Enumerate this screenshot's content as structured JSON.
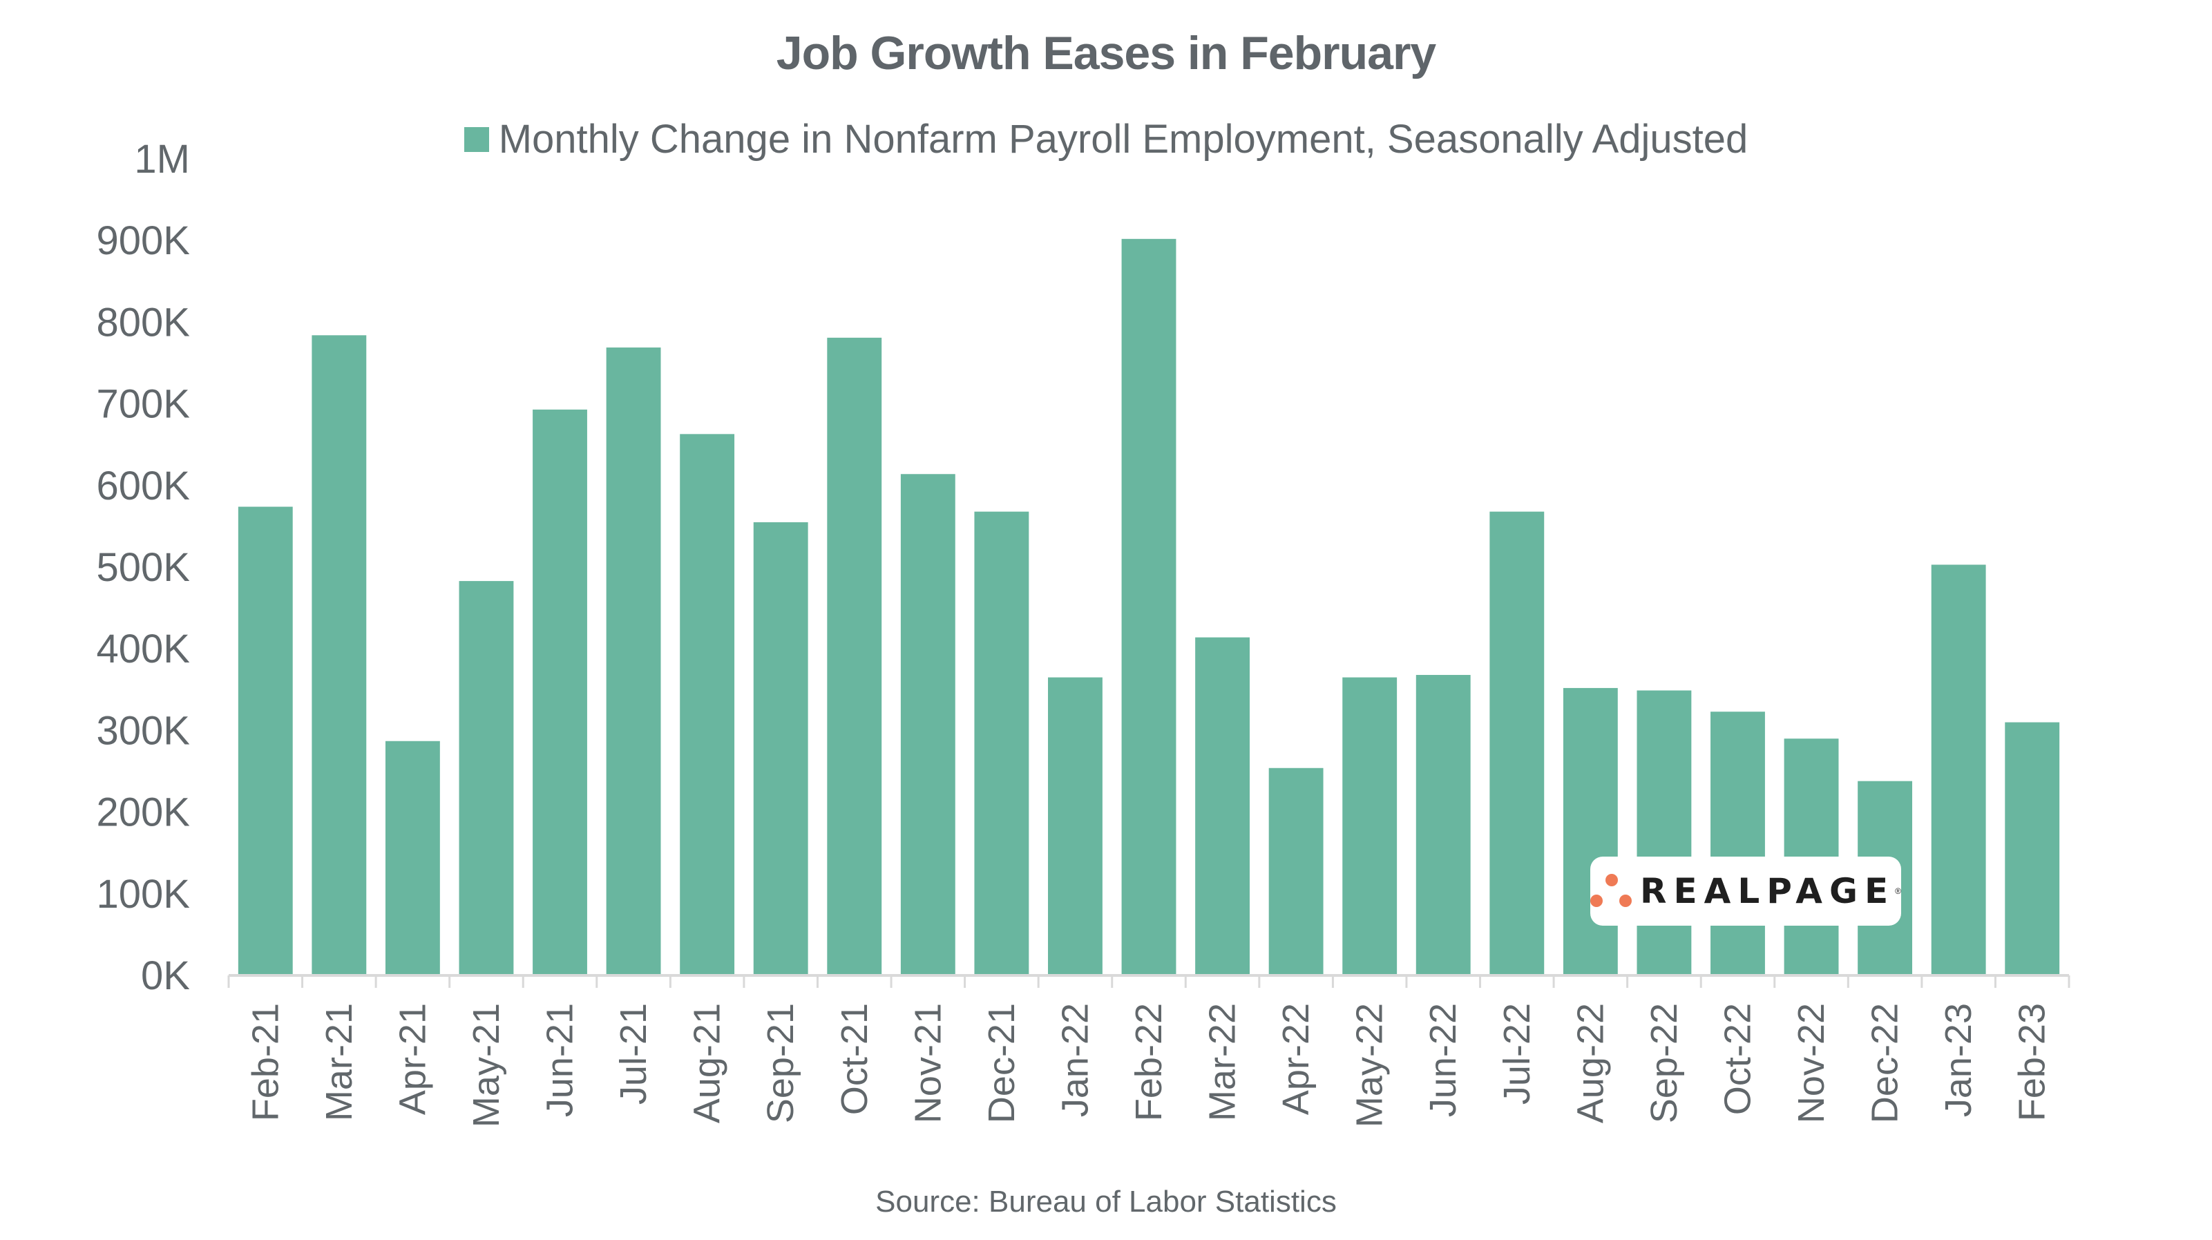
{
  "chart_data": {
    "type": "bar",
    "title": "Job Growth Eases in February",
    "legend": {
      "position": "top-center",
      "entries": [
        "Monthly Change in Nonfarm Payroll Employment, Seasonally Adjusted"
      ]
    },
    "xlabel": "",
    "ylabel": "",
    "ylim": [
      0,
      1000000
    ],
    "yticks": [
      0,
      100000,
      200000,
      300000,
      400000,
      500000,
      600000,
      700000,
      800000,
      900000,
      1000000
    ],
    "ytick_labels": [
      "0K",
      "100K",
      "200K",
      "300K",
      "400K",
      "500K",
      "600K",
      "700K",
      "800K",
      "900K",
      "1M"
    ],
    "grid": false,
    "categories": [
      "Feb-21",
      "Mar-21",
      "Apr-21",
      "May-21",
      "Jun-21",
      "Jul-21",
      "Aug-21",
      "Sep-21",
      "Oct-21",
      "Nov-21",
      "Dec-21",
      "Jan-22",
      "Feb-22",
      "Mar-22",
      "Apr-22",
      "May-22",
      "Jun-22",
      "Jul-22",
      "Aug-22",
      "Sep-22",
      "Oct-22",
      "Nov-22",
      "Dec-22",
      "Jan-23",
      "Feb-23"
    ],
    "series": [
      {
        "name": "Monthly Change in Nonfarm Payroll Employment, Seasonally Adjusted",
        "color": "#69b69f",
        "values": [
          574000,
          784000,
          287000,
          483000,
          693000,
          769000,
          663000,
          555000,
          781000,
          614000,
          568000,
          365000,
          902000,
          414000,
          254000,
          365000,
          368000,
          568000,
          352000,
          349000,
          323000,
          290000,
          238000,
          503000,
          310000
        ]
      }
    ],
    "source": "Source: Bureau of Labor Statistics"
  },
  "logo": {
    "text": "REALPAGE",
    "mark": "®",
    "dot_color": "#ef7a55"
  },
  "colors": {
    "bar": "#69b69f",
    "text": "#61676b",
    "axis": "#d9d9d9"
  }
}
